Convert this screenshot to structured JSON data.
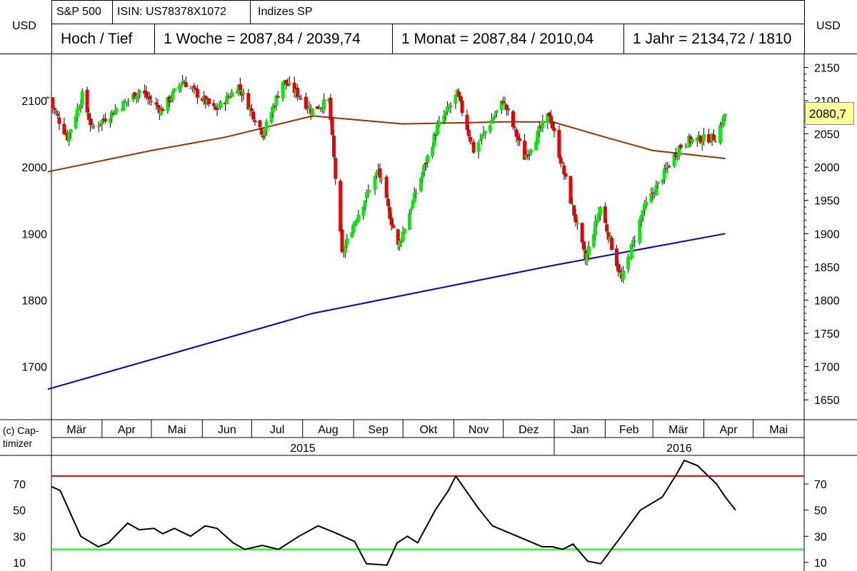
{
  "header": {
    "unit_left": "USD",
    "unit_right": "USD",
    "row1": [
      "S&P 500",
      "ISIN: US78378X1072",
      "Indizes SP"
    ],
    "row2": [
      "Hoch / Tief",
      "1 Woche = 2087,84 / 2039,74",
      "1 Monat = 2087,84 / 2010,04",
      "1 Jahr = 2134,72 / 1810"
    ]
  },
  "copyright": "(c) Cap-\ntimizer",
  "colors": {
    "up_candle": "#00ee00",
    "down_candle": "#ee0000",
    "ma_short": "#993300",
    "ma_long": "#0000cc",
    "osc_line": "#000000",
    "upper_band": "#ff0000",
    "lower_band": "#00ff00",
    "last_price_bg": "#ffff99"
  },
  "chart_data": [
    {
      "type": "candlestick",
      "title": "S&P 500",
      "ylabel": "USD",
      "ylim": [
        1620,
        2170
      ],
      "yticks_left": [
        1700,
        1800,
        1900,
        2000,
        2100
      ],
      "yticks_right": [
        1650,
        1700,
        1750,
        1800,
        1850,
        1900,
        1950,
        2000,
        2050,
        2100,
        2150
      ],
      "months": [
        "Mär",
        "Apr",
        "Mai",
        "Jun",
        "Jul",
        "Aug",
        "Sep",
        "Okt",
        "Nov",
        "Dez",
        "Jan",
        "Feb",
        "Mär",
        "Apr",
        "Mai"
      ],
      "years": [
        "2015",
        "2016"
      ],
      "last_price": "2080,7",
      "close_keypoints": [
        [
          "2015-02-27",
          2105
        ],
        [
          "2015-03-11",
          2045
        ],
        [
          "2015-03-20",
          2108
        ],
        [
          "2015-03-26",
          2058
        ],
        [
          "2015-04-24",
          2115
        ],
        [
          "2015-05-07",
          2085
        ],
        [
          "2015-05-20",
          2130
        ],
        [
          "2015-06-09",
          2085
        ],
        [
          "2015-06-23",
          2122
        ],
        [
          "2015-07-08",
          2050
        ],
        [
          "2015-07-20",
          2130
        ],
        [
          "2015-07-30",
          2108
        ],
        [
          "2015-08-06",
          2085
        ],
        [
          "2015-08-17",
          2100
        ],
        [
          "2015-08-25",
          1868
        ],
        [
          "2015-09-01",
          1915
        ],
        [
          "2015-09-16",
          1995
        ],
        [
          "2015-09-28",
          1880
        ],
        [
          "2015-10-22",
          2060
        ],
        [
          "2015-11-03",
          2110
        ],
        [
          "2015-11-13",
          2025
        ],
        [
          "2015-12-01",
          2100
        ],
        [
          "2015-12-14",
          2015
        ],
        [
          "2015-12-29",
          2080
        ],
        [
          "2016-01-20",
          1860
        ],
        [
          "2016-01-29",
          1940
        ],
        [
          "2016-02-11",
          1830
        ],
        [
          "2016-02-24",
          1935
        ],
        [
          "2016-03-17",
          2030
        ],
        [
          "2016-03-23",
          2040
        ],
        [
          "2016-04-08",
          2045
        ],
        [
          "2016-04-14",
          2080
        ]
      ],
      "series": [
        {
          "name": "",
          "kind": "ma_short",
          "points": [
            [
              "2015-02-27",
              1993
            ],
            [
              "2015-05-01",
              2025
            ],
            [
              "2015-06-15",
              2045
            ],
            [
              "2015-08-07",
              2077
            ],
            [
              "2015-10-01",
              2065
            ],
            [
              "2015-12-01",
              2068
            ],
            [
              "2015-12-31",
              2068
            ],
            [
              "2016-02-01",
              2045
            ],
            [
              "2016-03-01",
              2025
            ],
            [
              "2016-04-14",
              2013
            ]
          ]
        },
        {
          "name": "",
          "kind": "ma_long",
          "points": [
            [
              "2015-02-27",
              1666
            ],
            [
              "2015-08-07",
              1780
            ],
            [
              "2015-12-31",
              1852
            ],
            [
              "2016-04-14",
              1900
            ]
          ]
        }
      ]
    },
    {
      "type": "line",
      "ylim": [
        0,
        90
      ],
      "yticks_left": [
        10,
        30,
        50,
        70
      ],
      "yticks_right": [
        10,
        30,
        50,
        70
      ],
      "bands": [
        76,
        20
      ],
      "series": [
        {
          "name": "",
          "points": [
            [
              "2015-02-27",
              68
            ],
            [
              "2015-03-05",
              65
            ],
            [
              "2015-03-11",
              50
            ],
            [
              "2015-03-19",
              30
            ],
            [
              "2015-03-31",
              22
            ],
            [
              "2015-04-07",
              25
            ],
            [
              "2015-04-20",
              40
            ],
            [
              "2015-04-28",
              35
            ],
            [
              "2015-05-08",
              36
            ],
            [
              "2015-05-14",
              32
            ],
            [
              "2015-05-22",
              36
            ],
            [
              "2015-06-02",
              30
            ],
            [
              "2015-06-12",
              38
            ],
            [
              "2015-06-20",
              36
            ],
            [
              "2015-07-01",
              25
            ],
            [
              "2015-07-09",
              20
            ],
            [
              "2015-07-21",
              23
            ],
            [
              "2015-08-01",
              20
            ],
            [
              "2015-08-15",
              30
            ],
            [
              "2015-08-28",
              38
            ],
            [
              "2015-09-08",
              33
            ],
            [
              "2015-09-22",
              26
            ],
            [
              "2015-09-30",
              9
            ],
            [
              "2015-10-14",
              8
            ],
            [
              "2015-10-21",
              25
            ],
            [
              "2015-10-28",
              30
            ],
            [
              "2015-11-04",
              25
            ],
            [
              "2015-11-16",
              50
            ],
            [
              "2015-11-25",
              65
            ],
            [
              "2015-11-30",
              76
            ],
            [
              "2015-12-15",
              52
            ],
            [
              "2015-12-25",
              38
            ],
            [
              "2016-01-11",
              30
            ],
            [
              "2016-01-28",
              22
            ],
            [
              "2016-02-04",
              22
            ],
            [
              "2016-02-11",
              20
            ],
            [
              "2016-02-18",
              24
            ],
            [
              "2016-02-28",
              11
            ],
            [
              "2016-03-08",
              9
            ],
            [
              "2016-03-22",
              30
            ],
            [
              "2016-04-04",
              50
            ],
            [
              "2016-04-19",
              60
            ],
            [
              "2016-04-29",
              78
            ],
            [
              "2016-05-04",
              88
            ],
            [
              "2016-05-13",
              84
            ],
            [
              "2016-05-26",
              70
            ],
            [
              "2016-06-01",
              60
            ],
            [
              "2016-06-08",
              50
            ]
          ]
        }
      ]
    }
  ]
}
